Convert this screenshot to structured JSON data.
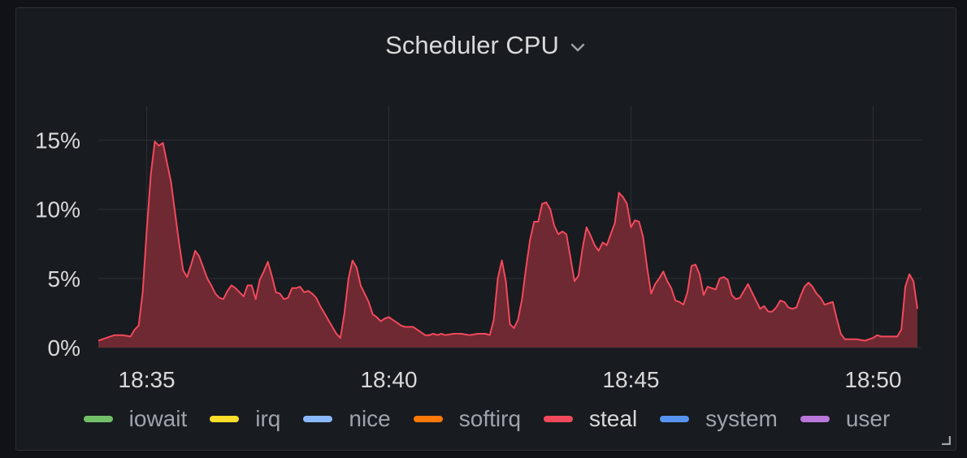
{
  "panel": {
    "title": "Scheduler CPU",
    "menu_icon": "chevron-down-icon",
    "resize_icon": "resize-handle-icon"
  },
  "colors": {
    "background": "#181b1f",
    "grid": "#2c2f34",
    "text": "#d8d9da",
    "steal_line": "#f2495c",
    "steal_fill": "#732a34"
  },
  "legend": [
    {
      "name": "iowait",
      "color": "#73bf69"
    },
    {
      "name": "irq",
      "color": "#fade2a"
    },
    {
      "name": "nice",
      "color": "#8ab8ff"
    },
    {
      "name": "softirq",
      "color": "#ff780a"
    },
    {
      "name": "steal",
      "color": "#f2495c",
      "active": true
    },
    {
      "name": "system",
      "color": "#5794f2"
    },
    {
      "name": "user",
      "color": "#b877d9"
    }
  ],
  "chart_data": {
    "type": "area",
    "title": "Scheduler CPU",
    "x_unit": "time (HH:MM)",
    "y_unit": "percent",
    "xlim": [
      "18:34:00",
      "18:51:00"
    ],
    "ylim": [
      0,
      17.5
    ],
    "y_ticks": [
      0,
      5,
      10,
      15
    ],
    "y_tick_labels": [
      "0%",
      "5%",
      "10%",
      "15%"
    ],
    "x_ticks": [
      "18:35",
      "18:40",
      "18:45",
      "18:50"
    ],
    "grid": true,
    "legend_position": "bottom",
    "series": [
      {
        "name": "steal",
        "color": "#f2495c",
        "points": [
          [
            "18:34:00",
            0.5
          ],
          [
            "18:34:10",
            0.7
          ],
          [
            "18:34:20",
            0.9
          ],
          [
            "18:34:30",
            0.9
          ],
          [
            "18:34:40",
            0.8
          ],
          [
            "18:34:45",
            1.3
          ],
          [
            "18:34:50",
            1.6
          ],
          [
            "18:34:55",
            4.0
          ],
          [
            "18:35:00",
            8.5
          ],
          [
            "18:35:05",
            12.5
          ],
          [
            "18:35:10",
            14.9
          ],
          [
            "18:35:15",
            14.6
          ],
          [
            "18:35:20",
            14.8
          ],
          [
            "18:35:25",
            13.4
          ],
          [
            "18:35:30",
            12.0
          ],
          [
            "18:35:35",
            9.8
          ],
          [
            "18:35:40",
            7.6
          ],
          [
            "18:35:45",
            5.6
          ],
          [
            "18:35:50",
            5.1
          ],
          [
            "18:35:55",
            6.0
          ],
          [
            "18:36:00",
            7.0
          ],
          [
            "18:36:05",
            6.6
          ],
          [
            "18:36:10",
            5.8
          ],
          [
            "18:36:15",
            5.0
          ],
          [
            "18:36:20",
            4.5
          ],
          [
            "18:36:25",
            3.9
          ],
          [
            "18:36:30",
            3.6
          ],
          [
            "18:36:35",
            3.5
          ],
          [
            "18:36:40",
            4.1
          ],
          [
            "18:36:45",
            4.5
          ],
          [
            "18:36:50",
            4.3
          ],
          [
            "18:36:55",
            4.0
          ],
          [
            "18:37:00",
            3.7
          ],
          [
            "18:37:05",
            4.5
          ],
          [
            "18:37:10",
            4.5
          ],
          [
            "18:37:15",
            3.5
          ],
          [
            "18:37:20",
            4.9
          ],
          [
            "18:37:25",
            5.5
          ],
          [
            "18:37:30",
            6.2
          ],
          [
            "18:37:35",
            5.2
          ],
          [
            "18:37:40",
            4.0
          ],
          [
            "18:37:45",
            3.9
          ],
          [
            "18:37:50",
            3.5
          ],
          [
            "18:37:55",
            3.6
          ],
          [
            "18:38:00",
            4.3
          ],
          [
            "18:38:05",
            4.3
          ],
          [
            "18:38:10",
            4.4
          ],
          [
            "18:38:15",
            4.0
          ],
          [
            "18:38:20",
            4.1
          ],
          [
            "18:38:25",
            3.9
          ],
          [
            "18:38:30",
            3.6
          ],
          [
            "18:38:35",
            3.0
          ],
          [
            "18:38:40",
            2.5
          ],
          [
            "18:38:45",
            2.0
          ],
          [
            "18:38:50",
            1.5
          ],
          [
            "18:38:55",
            1.0
          ],
          [
            "18:39:00",
            0.7
          ],
          [
            "18:39:05",
            2.5
          ],
          [
            "18:39:10",
            5.0
          ],
          [
            "18:39:15",
            6.3
          ],
          [
            "18:39:20",
            5.8
          ],
          [
            "18:39:25",
            4.5
          ],
          [
            "18:39:30",
            3.9
          ],
          [
            "18:39:35",
            3.3
          ],
          [
            "18:39:40",
            2.4
          ],
          [
            "18:39:45",
            2.2
          ],
          [
            "18:39:50",
            1.9
          ],
          [
            "18:39:55",
            2.1
          ],
          [
            "18:40:00",
            2.2
          ],
          [
            "18:40:05",
            2.0
          ],
          [
            "18:40:10",
            1.8
          ],
          [
            "18:40:15",
            1.6
          ],
          [
            "18:40:20",
            1.5
          ],
          [
            "18:40:30",
            1.5
          ],
          [
            "18:40:35",
            1.3
          ],
          [
            "18:40:40",
            1.1
          ],
          [
            "18:40:45",
            0.9
          ],
          [
            "18:40:50",
            0.9
          ],
          [
            "18:40:55",
            1.0
          ],
          [
            "18:41:00",
            0.9
          ],
          [
            "18:41:05",
            1.0
          ],
          [
            "18:41:10",
            0.9
          ],
          [
            "18:41:20",
            1.0
          ],
          [
            "18:41:30",
            1.0
          ],
          [
            "18:41:40",
            0.9
          ],
          [
            "18:41:50",
            1.0
          ],
          [
            "18:42:00",
            1.0
          ],
          [
            "18:42:05",
            0.9
          ],
          [
            "18:42:10",
            2.0
          ],
          [
            "18:42:15",
            5.0
          ],
          [
            "18:42:20",
            6.3
          ],
          [
            "18:42:25",
            4.8
          ],
          [
            "18:42:30",
            1.7
          ],
          [
            "18:42:35",
            1.4
          ],
          [
            "18:42:40",
            2.0
          ],
          [
            "18:42:45",
            3.5
          ],
          [
            "18:42:50",
            5.8
          ],
          [
            "18:42:55",
            7.8
          ],
          [
            "18:43:00",
            9.1
          ],
          [
            "18:43:05",
            9.1
          ],
          [
            "18:43:10",
            10.4
          ],
          [
            "18:43:15",
            10.5
          ],
          [
            "18:43:20",
            10.0
          ],
          [
            "18:43:25",
            8.8
          ],
          [
            "18:43:30",
            8.2
          ],
          [
            "18:43:35",
            8.4
          ],
          [
            "18:43:40",
            8.2
          ],
          [
            "18:43:45",
            6.5
          ],
          [
            "18:43:50",
            4.8
          ],
          [
            "18:43:55",
            5.2
          ],
          [
            "18:44:00",
            7.2
          ],
          [
            "18:44:05",
            8.7
          ],
          [
            "18:44:10",
            8.1
          ],
          [
            "18:44:15",
            7.4
          ],
          [
            "18:44:20",
            7.0
          ],
          [
            "18:44:25",
            7.6
          ],
          [
            "18:44:30",
            7.4
          ],
          [
            "18:44:35",
            8.2
          ],
          [
            "18:44:40",
            9.0
          ],
          [
            "18:44:45",
            11.2
          ],
          [
            "18:44:50",
            10.9
          ],
          [
            "18:44:55",
            10.4
          ],
          [
            "18:45:00",
            8.7
          ],
          [
            "18:45:05",
            9.2
          ],
          [
            "18:45:10",
            9.1
          ],
          [
            "18:45:15",
            8.0
          ],
          [
            "18:45:20",
            5.8
          ],
          [
            "18:45:25",
            3.9
          ],
          [
            "18:45:30",
            4.6
          ],
          [
            "18:45:35",
            5.0
          ],
          [
            "18:45:40",
            5.5
          ],
          [
            "18:45:45",
            4.8
          ],
          [
            "18:45:50",
            4.3
          ],
          [
            "18:45:55",
            3.4
          ],
          [
            "18:46:00",
            3.3
          ],
          [
            "18:46:05",
            3.1
          ],
          [
            "18:46:10",
            4.0
          ],
          [
            "18:46:15",
            5.9
          ],
          [
            "18:46:20",
            6.0
          ],
          [
            "18:46:25",
            5.3
          ],
          [
            "18:46:30",
            3.8
          ],
          [
            "18:46:35",
            4.4
          ],
          [
            "18:46:40",
            4.3
          ],
          [
            "18:46:45",
            4.2
          ],
          [
            "18:46:50",
            5.0
          ],
          [
            "18:46:55",
            5.1
          ],
          [
            "18:47:00",
            4.9
          ],
          [
            "18:47:05",
            3.8
          ],
          [
            "18:47:10",
            3.5
          ],
          [
            "18:47:15",
            3.6
          ],
          [
            "18:47:20",
            4.1
          ],
          [
            "18:47:25",
            4.6
          ],
          [
            "18:47:30",
            4.0
          ],
          [
            "18:47:35",
            3.4
          ],
          [
            "18:47:40",
            2.8
          ],
          [
            "18:47:45",
            3.0
          ],
          [
            "18:47:50",
            2.6
          ],
          [
            "18:47:55",
            2.6
          ],
          [
            "18:48:00",
            2.9
          ],
          [
            "18:48:05",
            3.4
          ],
          [
            "18:48:10",
            3.3
          ],
          [
            "18:48:15",
            2.9
          ],
          [
            "18:48:20",
            2.8
          ],
          [
            "18:48:25",
            2.9
          ],
          [
            "18:48:30",
            3.7
          ],
          [
            "18:48:35",
            4.4
          ],
          [
            "18:48:40",
            4.7
          ],
          [
            "18:48:45",
            4.4
          ],
          [
            "18:48:50",
            3.9
          ],
          [
            "18:48:55",
            3.6
          ],
          [
            "18:49:00",
            3.1
          ],
          [
            "18:49:05",
            3.2
          ],
          [
            "18:49:10",
            3.3
          ],
          [
            "18:49:15",
            2.1
          ],
          [
            "18:49:20",
            1.0
          ],
          [
            "18:49:25",
            0.6
          ],
          [
            "18:49:30",
            0.6
          ],
          [
            "18:49:40",
            0.6
          ],
          [
            "18:49:50",
            0.5
          ],
          [
            "18:50:00",
            0.7
          ],
          [
            "18:50:05",
            0.9
          ],
          [
            "18:50:10",
            0.8
          ],
          [
            "18:50:20",
            0.8
          ],
          [
            "18:50:30",
            0.8
          ],
          [
            "18:50:35",
            1.3
          ],
          [
            "18:50:40",
            4.4
          ],
          [
            "18:50:45",
            5.3
          ],
          [
            "18:50:50",
            4.8
          ],
          [
            "18:50:55",
            2.8
          ]
        ]
      }
    ]
  }
}
